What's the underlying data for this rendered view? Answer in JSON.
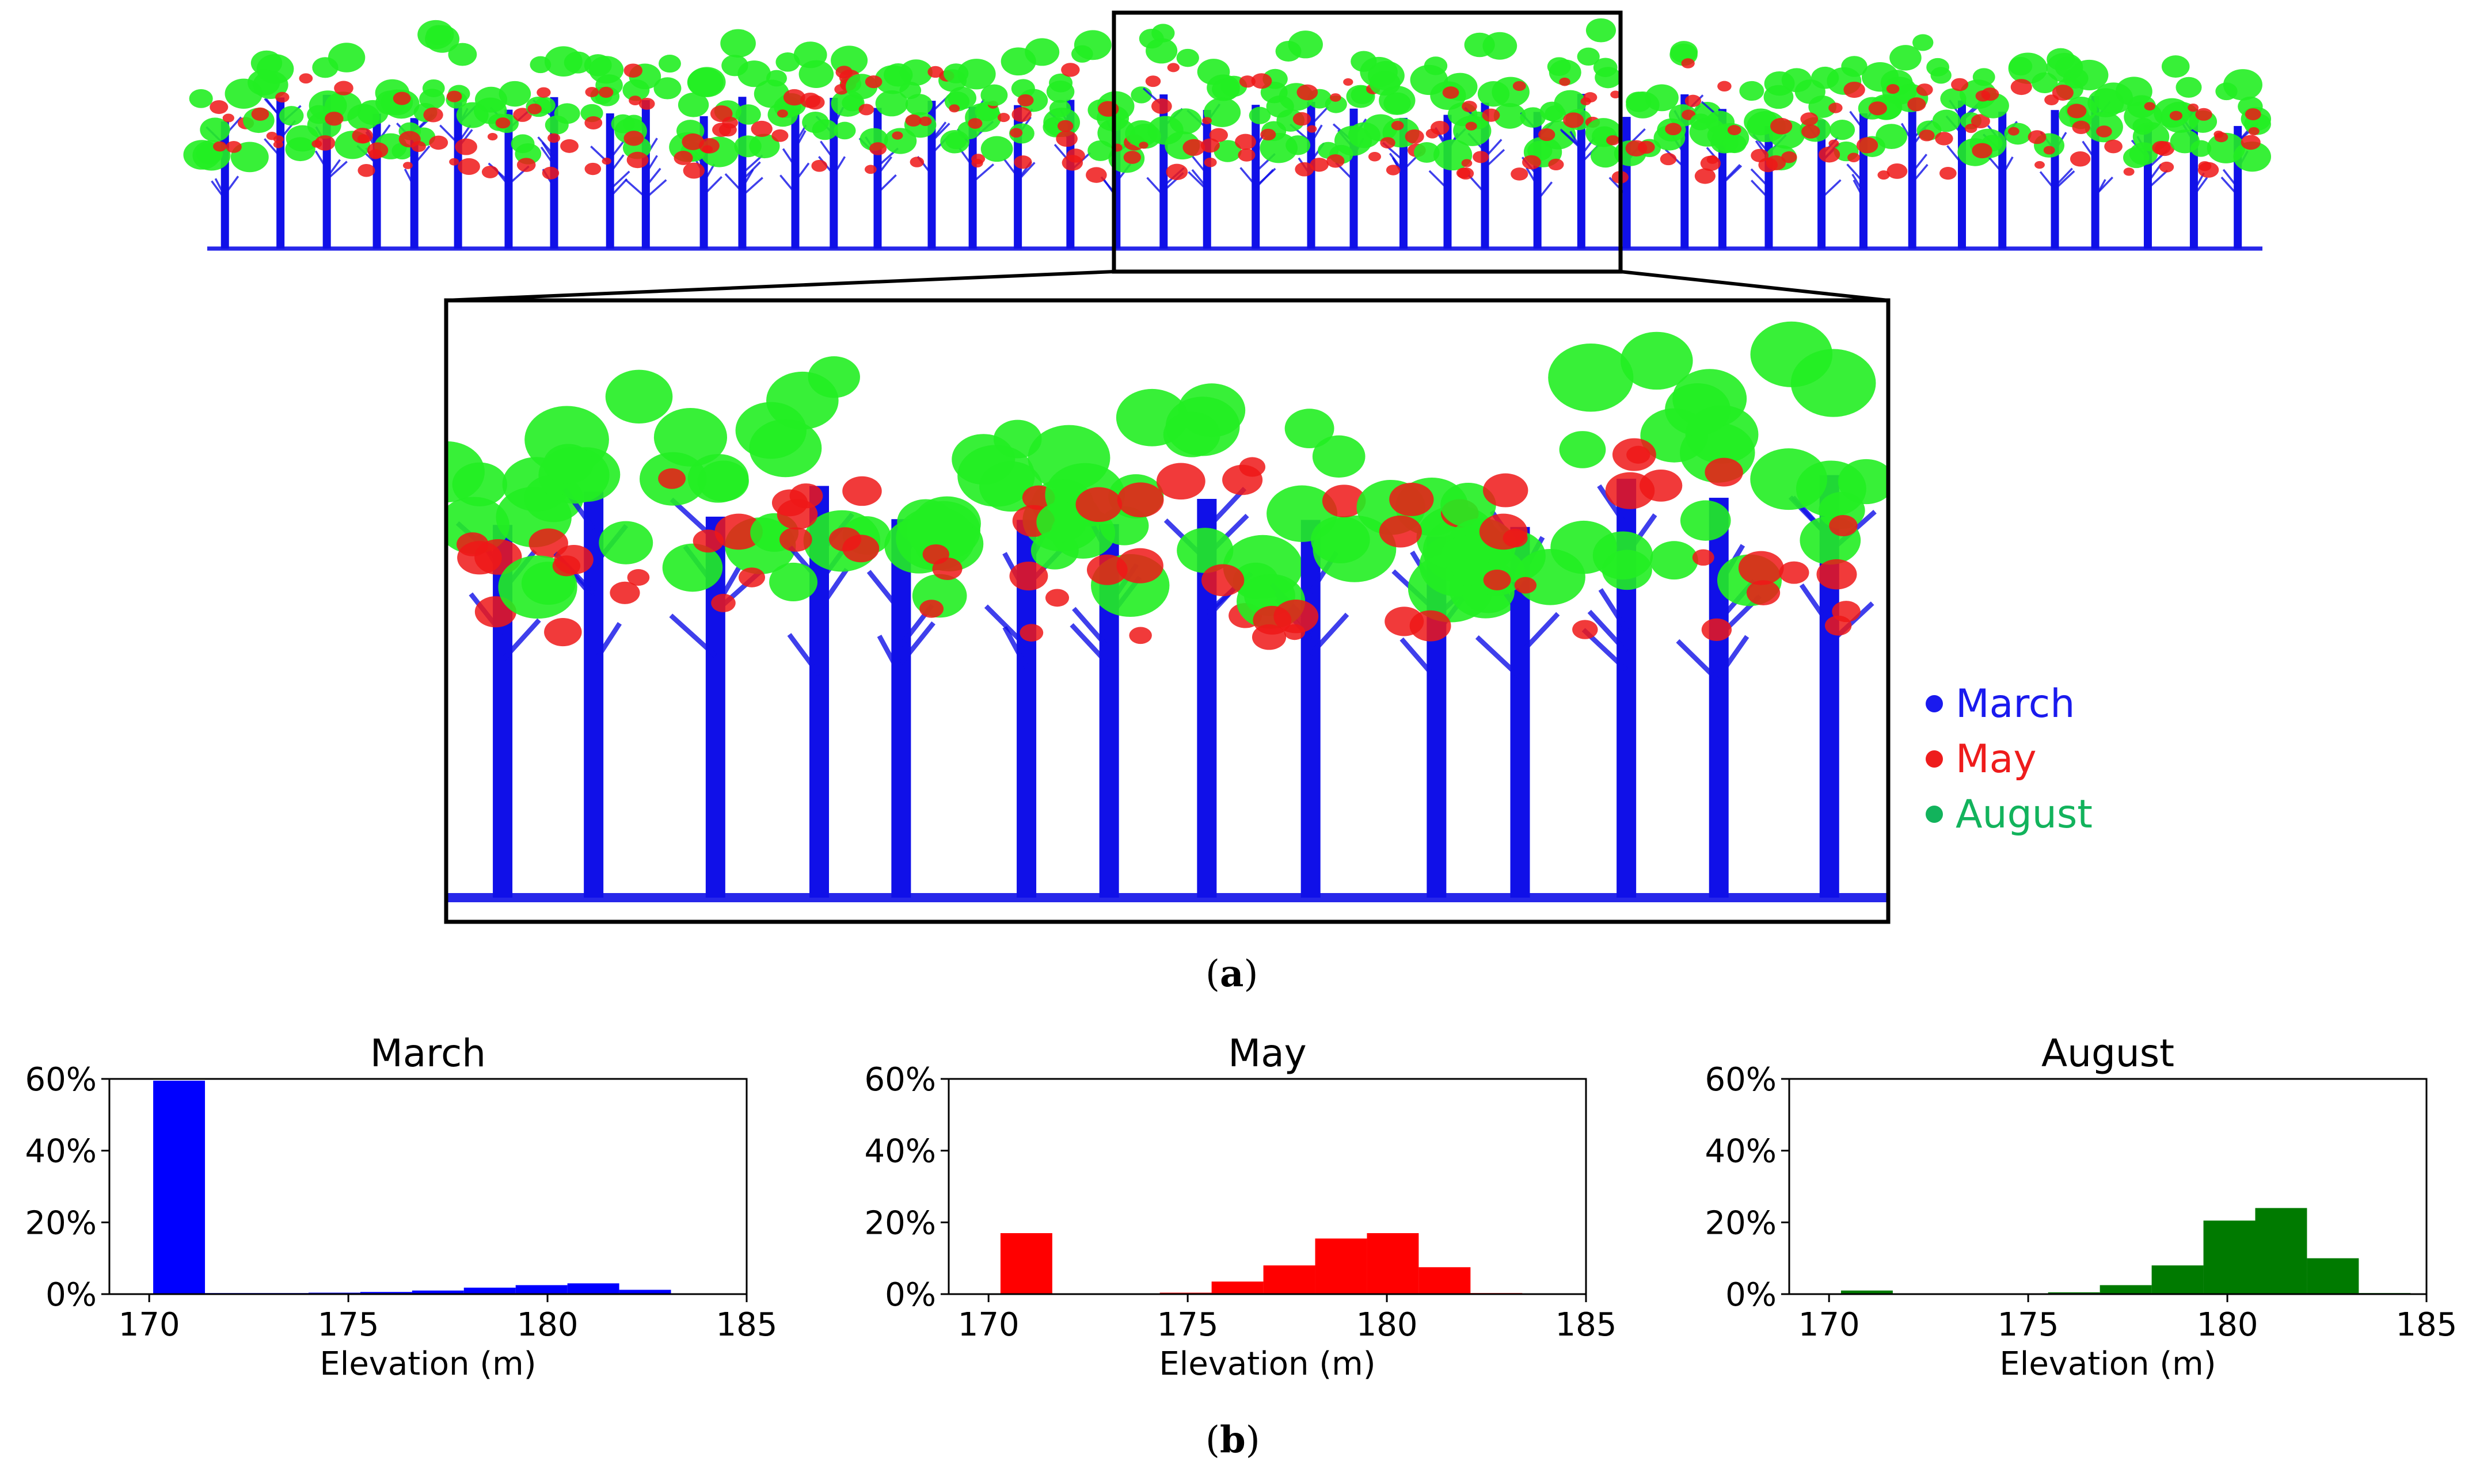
{
  "figure": {
    "panel_a_label": "a",
    "panel_b_label": "b",
    "point_cloud": {
      "colors": {
        "march": "#1010e8",
        "may": "#ee1818",
        "august": "#22ee22"
      }
    },
    "legend": [
      {
        "label": "March",
        "color": "#1a1aee",
        "text_color": "#1a1aee"
      },
      {
        "label": "May",
        "color": "#ee1c1c",
        "text_color": "#ee1c1c"
      },
      {
        "label": "August",
        "color": "#12b35c",
        "text_color": "#12b35c"
      }
    ]
  },
  "chart_data": [
    {
      "type": "bar",
      "title": "March",
      "xlabel": "Elevation (m)",
      "ylabel": "",
      "xlim": [
        169,
        185
      ],
      "ylim": [
        0,
        60
      ],
      "xticks": [
        "170",
        "175",
        "180",
        "185"
      ],
      "yticks": [
        "0%",
        "20%",
        "40%",
        "60%"
      ],
      "color": "#0000ff",
      "bins": [
        {
          "x0": 170.1,
          "x1": 171.4,
          "value": 59.5
        },
        {
          "x0": 171.4,
          "x1": 172.7,
          "value": 0.3
        },
        {
          "x0": 172.7,
          "x1": 174.0,
          "value": 0.3
        },
        {
          "x0": 174.0,
          "x1": 175.3,
          "value": 0.4
        },
        {
          "x0": 175.3,
          "x1": 176.6,
          "value": 0.6
        },
        {
          "x0": 176.6,
          "x1": 177.9,
          "value": 1.0
        },
        {
          "x0": 177.9,
          "x1": 179.2,
          "value": 1.8
        },
        {
          "x0": 179.2,
          "x1": 180.5,
          "value": 2.5
        },
        {
          "x0": 180.5,
          "x1": 181.8,
          "value": 3.0
        },
        {
          "x0": 181.8,
          "x1": 183.1,
          "value": 1.2
        }
      ]
    },
    {
      "type": "bar",
      "title": "May",
      "xlabel": "Elevation (m)",
      "ylabel": "",
      "xlim": [
        169,
        185
      ],
      "ylim": [
        0,
        60
      ],
      "xticks": [
        "170",
        "175",
        "180",
        "185"
      ],
      "yticks": [
        "0%",
        "20%",
        "40%",
        "60%"
      ],
      "color": "#ff0000",
      "bins": [
        {
          "x0": 170.3,
          "x1": 171.6,
          "value": 17.0
        },
        {
          "x0": 174.3,
          "x1": 175.6,
          "value": 0.4
        },
        {
          "x0": 175.6,
          "x1": 176.9,
          "value": 3.5
        },
        {
          "x0": 176.9,
          "x1": 178.2,
          "value": 8.0
        },
        {
          "x0": 178.2,
          "x1": 179.5,
          "value": 15.5
        },
        {
          "x0": 179.5,
          "x1": 180.8,
          "value": 17.0
        },
        {
          "x0": 180.8,
          "x1": 182.1,
          "value": 7.5
        },
        {
          "x0": 182.1,
          "x1": 183.4,
          "value": 0.3
        }
      ]
    },
    {
      "type": "bar",
      "title": "August",
      "xlabel": "Elevation (m)",
      "ylabel": "",
      "xlim": [
        169,
        185
      ],
      "ylim": [
        0,
        60
      ],
      "xticks": [
        "170",
        "175",
        "180",
        "185"
      ],
      "yticks": [
        "0%",
        "20%",
        "40%",
        "60%"
      ],
      "color": "#007a00",
      "bins": [
        {
          "x0": 170.3,
          "x1": 171.6,
          "value": 1.0
        },
        {
          "x0": 175.5,
          "x1": 176.8,
          "value": 0.5
        },
        {
          "x0": 176.8,
          "x1": 178.1,
          "value": 2.5
        },
        {
          "x0": 178.1,
          "x1": 179.4,
          "value": 8.0
        },
        {
          "x0": 179.4,
          "x1": 180.7,
          "value": 20.5
        },
        {
          "x0": 180.7,
          "x1": 182.0,
          "value": 24.0
        },
        {
          "x0": 182.0,
          "x1": 183.3,
          "value": 10.0
        },
        {
          "x0": 183.3,
          "x1": 184.6,
          "value": 0.3
        }
      ]
    }
  ]
}
